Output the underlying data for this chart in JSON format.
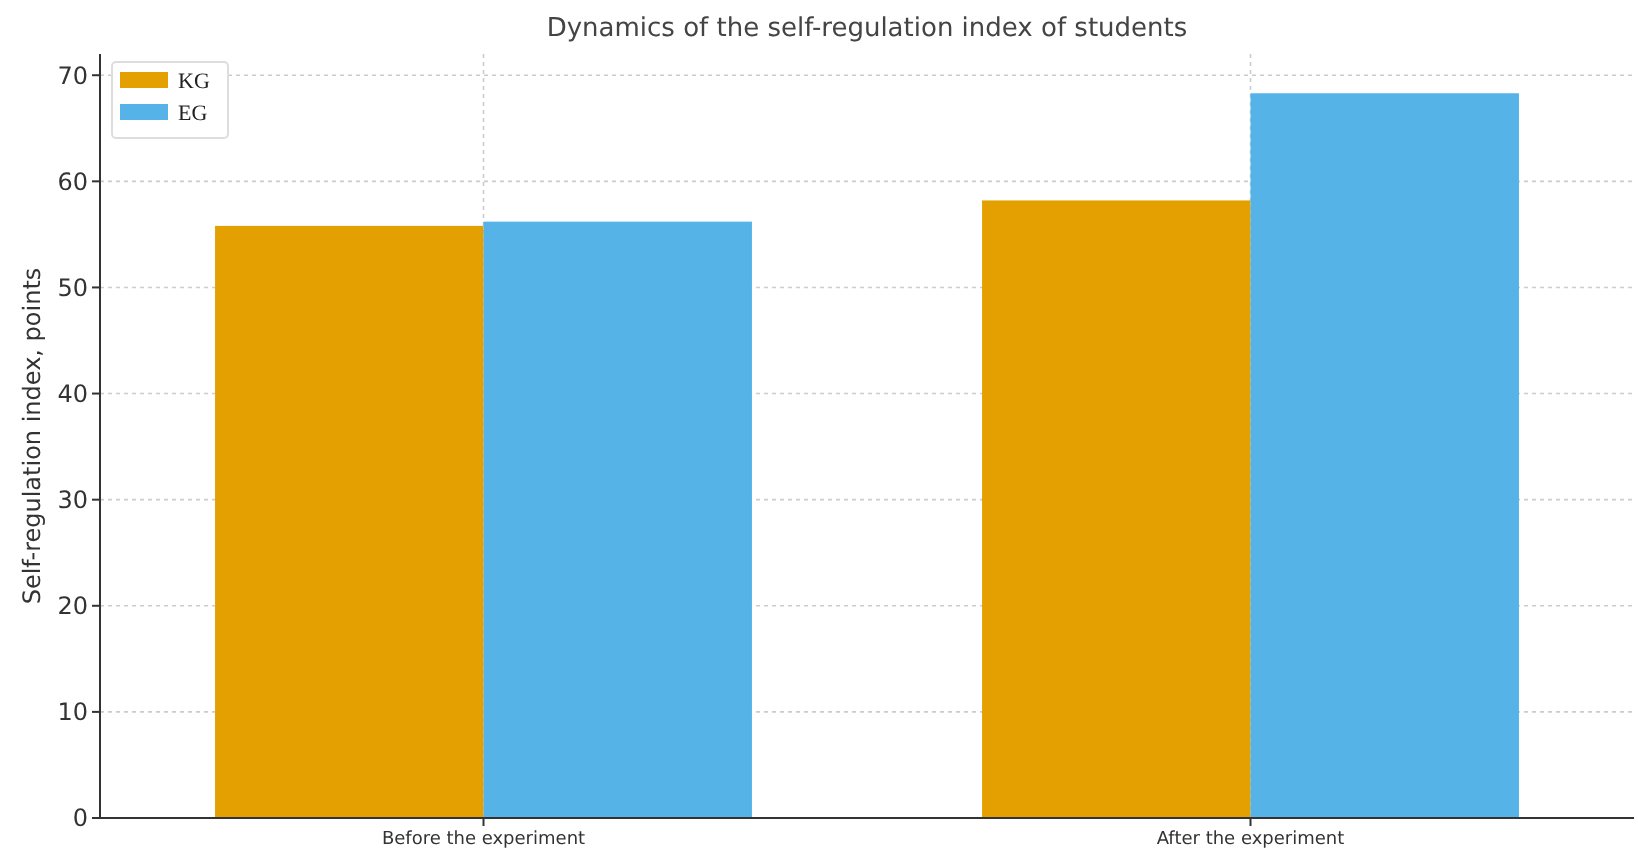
{
  "chart_data": {
    "type": "bar",
    "title": "Dynamics of the self-regulation index of students",
    "ylabel": "Self-regulation index, points",
    "categories": [
      "Before the experiment",
      "After the experiment"
    ],
    "series": [
      {
        "name": "KG",
        "color": "#e49f00",
        "values": [
          55.8,
          58.2
        ]
      },
      {
        "name": "EG",
        "color": "#56b3e8",
        "values": [
          56.2,
          68.3
        ]
      }
    ],
    "ylim": [
      0,
      72
    ],
    "yticks": [
      0,
      10,
      20,
      30,
      40,
      50,
      60,
      70
    ],
    "grid": true,
    "legend": "top left"
  }
}
